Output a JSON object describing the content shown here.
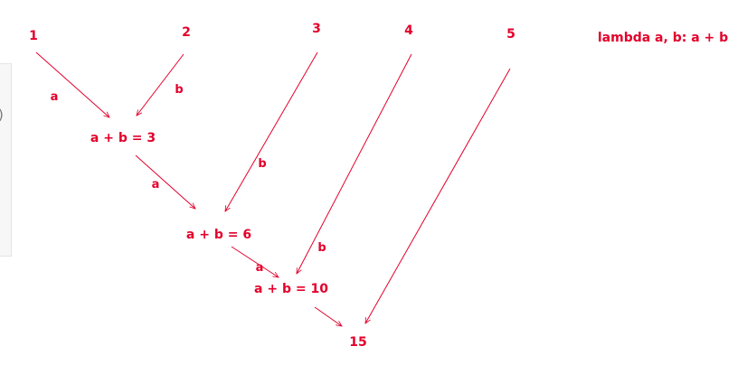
{
  "lambda_text": "lambda a, b: a + b",
  "inputs": [
    "1",
    "2",
    "3",
    "4",
    "5"
  ],
  "results": [
    "a + b = 3",
    "a + b = 6",
    "a + b = 10",
    "15"
  ],
  "edge_labels": {
    "a": "a",
    "b": "b"
  },
  "colors": {
    "ink": "#e4002b"
  },
  "side_panel": {
    "glyph": ")"
  }
}
